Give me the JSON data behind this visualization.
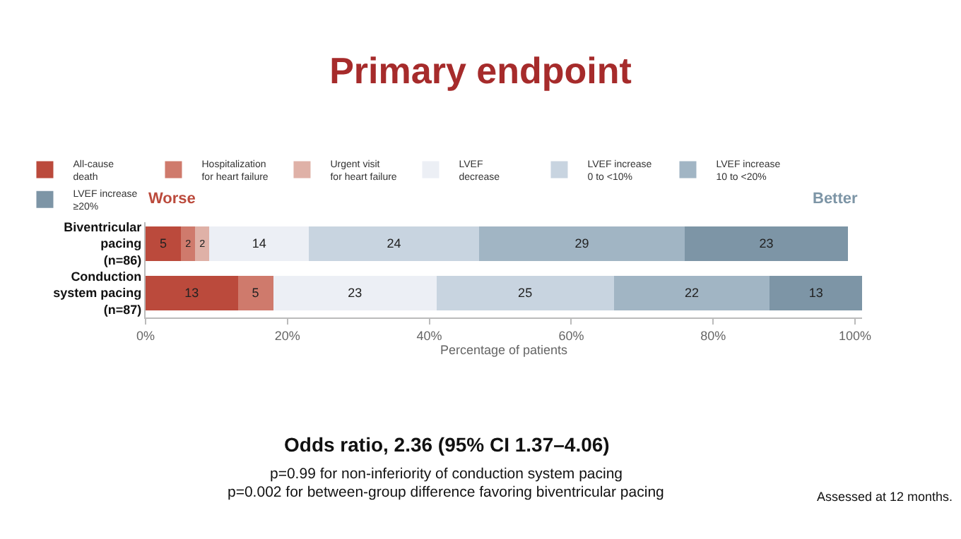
{
  "chart_data": {
    "type": "bar",
    "orientation": "horizontal",
    "stacked": true,
    "title": "Primary endpoint",
    "categories": [
      "Biventricular\npacing\n(n=86)",
      "Conduction\nsystem pacing\n(n=87)"
    ],
    "xlabel": "Percentage of patients",
    "xlim": [
      0,
      101
    ],
    "xticks": [
      {
        "value": 0,
        "label": "0%"
      },
      {
        "value": 20,
        "label": "20%"
      },
      {
        "value": 40,
        "label": "40%"
      },
      {
        "value": 60,
        "label": "60%"
      },
      {
        "value": 80,
        "label": "80%"
      },
      {
        "value": 100,
        "label": "100%"
      }
    ],
    "series": [
      {
        "name": "All-cause\ndeath",
        "color": "#bb4a3c",
        "values": [
          5,
          13
        ],
        "value_labels": [
          "5",
          "13"
        ]
      },
      {
        "name": "Hospitalization\nfor heart failure",
        "color": "#cf7a6c",
        "values": [
          2,
          5
        ],
        "value_labels": [
          "2",
          "5"
        ]
      },
      {
        "name": "Urgent visit\nfor heart failure",
        "color": "#dfb1a7",
        "values": [
          2,
          0
        ],
        "value_labels": [
          "2",
          null
        ]
      },
      {
        "name": "LVEF\ndecrease",
        "color": "#eceff5",
        "values": [
          14,
          23
        ],
        "value_labels": [
          "14",
          "23"
        ]
      },
      {
        "name": "LVEF increase\n0 to <10%",
        "color": "#c8d4e0",
        "values": [
          24,
          25
        ],
        "value_labels": [
          "24",
          "25"
        ]
      },
      {
        "name": "LVEF increase\n10 to <20%",
        "color": "#a1b5c4",
        "values": [
          29,
          22
        ],
        "value_labels": [
          "29",
          "22"
        ]
      },
      {
        "name": "LVEF increase\n≥20%",
        "color": "#7d95a6",
        "values": [
          23,
          13
        ],
        "value_labels": [
          "23",
          "13"
        ]
      }
    ],
    "legend": "top",
    "grid": false,
    "annotations": [
      "Worse",
      "Better",
      "Odds ratio, 2.36 (95% CI 1.37–4.06)",
      "p=0.99 for non-inferiority of conduction system pacing",
      "p=0.002 for between-group difference favoring biventricular pacing",
      "Assessed at 12 months."
    ]
  }
}
